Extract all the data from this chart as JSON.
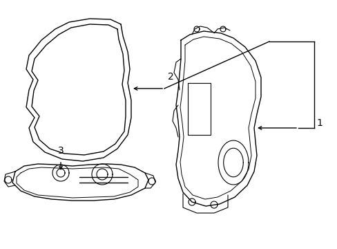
{
  "background_color": "#ffffff",
  "line_color": "#000000",
  "label_fontsize": 10,
  "figsize": [
    4.89,
    3.6
  ],
  "dpi": 100,
  "xlim": [
    0,
    489
  ],
  "ylim": [
    0,
    360
  ]
}
